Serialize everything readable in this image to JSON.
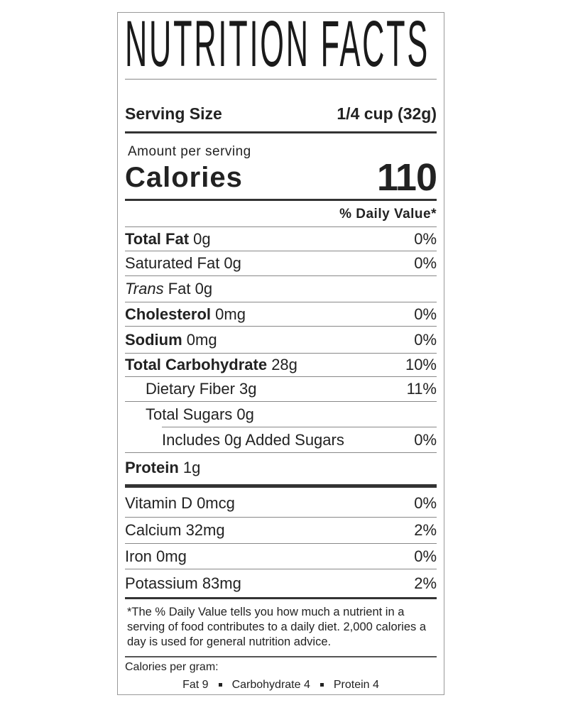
{
  "title": "NUTRITION FACTS",
  "serving": {
    "label": "Serving Size",
    "value": "1/4 cup (32g)"
  },
  "amount_per_serving": "Amount per serving",
  "calories": {
    "label": "Calories",
    "value": "110"
  },
  "daily_value_header": "% Daily Value*",
  "nutrients": [
    {
      "name": "Total Fat",
      "amount": "0g",
      "dv": "0%"
    },
    {
      "name": "Saturated Fat 0g",
      "dv": "0%"
    },
    {
      "name_italic": "Trans",
      "name": "Fat 0g",
      "dv": ""
    },
    {
      "name": "Cholesterol",
      "amount": "0mg",
      "dv": "0%"
    },
    {
      "name": "Sodium",
      "amount": "0mg",
      "dv": "0%"
    },
    {
      "name": "Total Carbohydrate",
      "amount": "28g",
      "dv": "10%"
    },
    {
      "name": "Dietary Fiber 3g",
      "dv": "11%"
    },
    {
      "name": "Total Sugars 0g",
      "dv": ""
    },
    {
      "name": "Includes 0g Added Sugars",
      "dv": "0%"
    },
    {
      "name": "Protein",
      "amount": "1g",
      "dv": ""
    }
  ],
  "vitamins": [
    {
      "name": "Vitamin D 0mcg",
      "dv": "0%"
    },
    {
      "name": "Calcium 32mg",
      "dv": "2%"
    },
    {
      "name": "Iron 0mg",
      "dv": "0%"
    },
    {
      "name": "Potassium 83mg",
      "dv": "2%"
    }
  ],
  "footnote": "*The % Daily Value tells you how much a nutrient in a serving of food contributes to a daily diet. 2,000 calories a day is used for general nutrition advice.",
  "calories_per_gram": {
    "label": "Calories per gram:",
    "fat": "Fat 9",
    "carbohydrate": "Carbohydrate 4",
    "protein": "Protein 4"
  }
}
